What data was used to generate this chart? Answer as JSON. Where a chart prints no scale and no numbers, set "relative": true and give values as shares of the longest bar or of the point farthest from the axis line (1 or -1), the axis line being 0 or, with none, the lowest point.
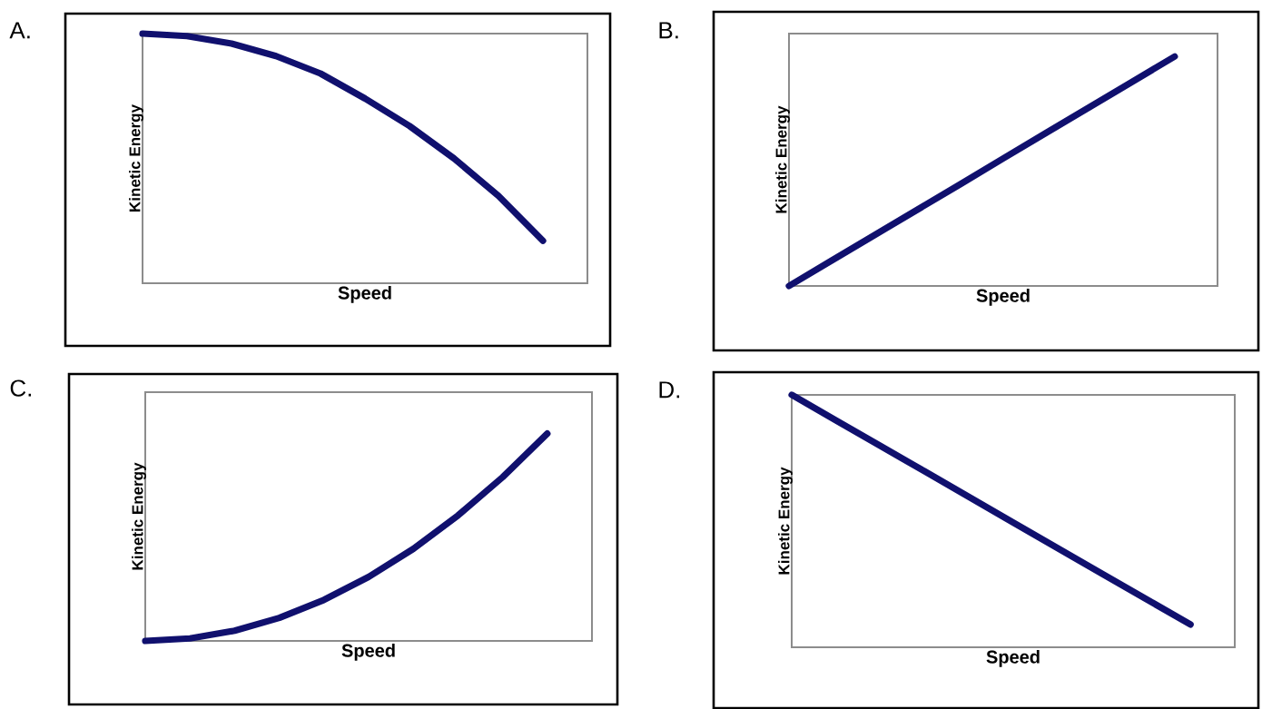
{
  "chart_data": [
    {
      "type": "line",
      "title": "A.",
      "xlabel": "Speed",
      "ylabel": "Kinetic Energy",
      "relative": true,
      "color": "#10106e",
      "categories": [
        null,
        null,
        null,
        null,
        null,
        null,
        null,
        null,
        null,
        null,
        null
      ],
      "values": [
        1,
        0.99,
        0.96,
        0.91,
        0.84,
        0.74,
        0.63,
        0.5,
        0.35,
        0.17,
        null
      ]
    },
    {
      "type": "line",
      "title": "B.",
      "xlabel": "Speed",
      "ylabel": "Kinetic Energy",
      "relative": true,
      "color": "#10106e",
      "categories": [
        null,
        null,
        null,
        null,
        null,
        null,
        null,
        null,
        null,
        null,
        null
      ],
      "values": [
        0,
        0.111,
        0.222,
        0.333,
        0.444,
        0.556,
        0.667,
        0.778,
        0.889,
        1,
        null
      ]
    },
    {
      "type": "line",
      "title": "C.",
      "xlabel": "Speed",
      "ylabel": "Kinetic Energy",
      "relative": true,
      "color": "#10106e",
      "categories": [
        null,
        null,
        null,
        null,
        null,
        null,
        null,
        null,
        null,
        null,
        null
      ],
      "values": [
        0,
        0.012,
        0.049,
        0.111,
        0.198,
        0.309,
        0.444,
        0.605,
        0.79,
        1,
        null
      ]
    },
    {
      "type": "line",
      "title": "D.",
      "xlabel": "Speed",
      "ylabel": "Kinetic Energy",
      "relative": true,
      "color": "#10106e",
      "categories": [
        null,
        null,
        null,
        null,
        null,
        null,
        null,
        null,
        null,
        null,
        null
      ],
      "values": [
        1,
        0.899,
        0.798,
        0.697,
        0.596,
        0.494,
        0.393,
        0.292,
        0.191,
        0.09,
        null
      ]
    }
  ]
}
